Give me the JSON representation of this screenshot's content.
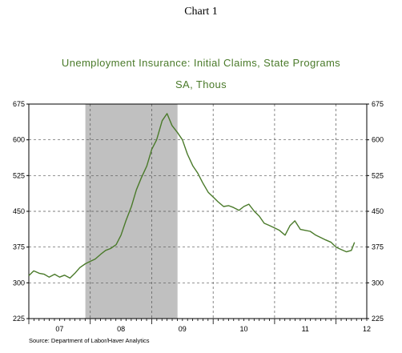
{
  "chart_number": "Chart 1",
  "source": "Source: Department of Labor/Haver Analytics",
  "colors": {
    "line": "#4a7a2a",
    "recession": "#c0c0c0",
    "title": "#4a7a2a"
  },
  "chart_data": {
    "type": "line",
    "title": "Unemployment Insurance: Initial Claims, State Programs",
    "subtitle": "SA, Thous",
    "y_ticks": [
      675,
      600,
      525,
      450,
      375,
      300,
      225
    ],
    "ylim": [
      225,
      675
    ],
    "x_tick_labels": [
      "07",
      "08",
      "09",
      "10",
      "11",
      "12"
    ],
    "xlim": [
      2007.0,
      2012.5
    ],
    "grid": true,
    "recession_shading": [
      [
        2007.92,
        2009.42
      ]
    ],
    "series": [
      {
        "x": [
          2007.0,
          2007.08,
          2007.17,
          2007.25,
          2007.33,
          2007.42,
          2007.5,
          2007.58,
          2007.67,
          2007.75,
          2007.83,
          2007.92,
          2008.0,
          2008.08,
          2008.17,
          2008.25,
          2008.33,
          2008.42,
          2008.5,
          2008.58,
          2008.67,
          2008.75,
          2008.83,
          2008.92,
          2009.0,
          2009.08,
          2009.17,
          2009.25,
          2009.33,
          2009.42,
          2009.5,
          2009.58,
          2009.67,
          2009.75,
          2009.83,
          2009.92,
          2010.0,
          2010.08,
          2010.17,
          2010.25,
          2010.33,
          2010.42,
          2010.5,
          2010.58,
          2010.67,
          2010.75,
          2010.83,
          2010.92,
          2011.0,
          2011.08,
          2011.17,
          2011.25,
          2011.33,
          2011.42,
          2011.5,
          2011.58,
          2011.67,
          2011.75,
          2011.83,
          2011.92,
          2012.0,
          2012.08,
          2012.17,
          2012.25,
          2012.3
        ],
        "values": [
          315,
          325,
          320,
          318,
          312,
          318,
          312,
          316,
          310,
          320,
          332,
          340,
          345,
          350,
          360,
          368,
          372,
          380,
          400,
          430,
          460,
          495,
          520,
          545,
          580,
          600,
          640,
          655,
          630,
          615,
          600,
          570,
          545,
          530,
          510,
          490,
          480,
          470,
          460,
          462,
          458,
          452,
          460,
          465,
          450,
          440,
          425,
          420,
          415,
          410,
          400,
          420,
          430,
          412,
          410,
          408,
          400,
          395,
          390,
          385,
          375,
          370,
          365,
          368,
          385
        ]
      }
    ]
  }
}
